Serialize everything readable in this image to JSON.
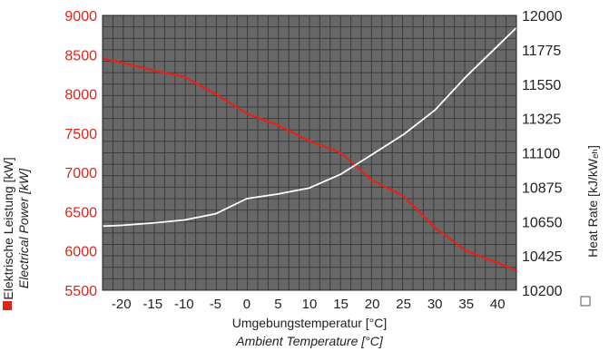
{
  "chart_data": {
    "type": "line",
    "xlabel": "Umgebungstemperatur [°C]",
    "xlabel_en": "Ambient Temperature [°C]",
    "ylabel_left": "Elektrische Leistung [kW]",
    "ylabel_left_en": "Electrical Power [kW]",
    "ylabel_right": "Heat Rate [kJ/kWₑₕ]",
    "xlim": [
      -23,
      43
    ],
    "ylim_left": [
      5500,
      9000
    ],
    "ylim_right": [
      10200,
      12000
    ],
    "x_ticks": [
      -20,
      -15,
      -10,
      -5,
      0,
      5,
      10,
      15,
      20,
      25,
      30,
      35,
      40
    ],
    "y_left_ticks": [
      5500,
      6000,
      6500,
      7000,
      7500,
      8000,
      8500,
      9000
    ],
    "y_right_ticks": [
      10200,
      10425,
      10650,
      10875,
      11100,
      11325,
      11550,
      11775,
      12000
    ],
    "grid": true,
    "colors": {
      "plot_bg": "#676767",
      "grid": "#3c3c3c",
      "power_line": "#e2231a",
      "heat_rate_line": "#ffffff",
      "left_axis_text": "#e2231a"
    },
    "series": [
      {
        "axis": "left",
        "x": [
          -23,
          -20,
          -15,
          -10,
          -5,
          0,
          5,
          10,
          15,
          20,
          25,
          30,
          35,
          40,
          43
        ],
        "values": [
          8450,
          8400,
          8300,
          8220,
          8000,
          7750,
          7600,
          7400,
          7250,
          6900,
          6700,
          6300,
          6000,
          5850,
          5750
        ]
      },
      {
        "axis": "right",
        "x": [
          -23,
          -20,
          -15,
          -10,
          -5,
          0,
          5,
          10,
          15,
          20,
          25,
          30,
          35,
          40,
          43
        ],
        "values": [
          10620,
          10625,
          10640,
          10660,
          10700,
          10800,
          10830,
          10870,
          10960,
          11090,
          11220,
          11380,
          11600,
          11800,
          11920
        ]
      }
    ]
  }
}
